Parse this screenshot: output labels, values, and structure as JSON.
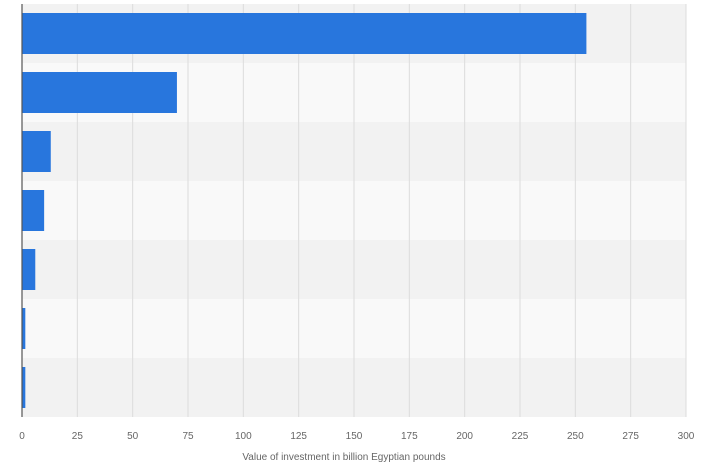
{
  "chart_data": {
    "type": "bar",
    "orientation": "horizontal",
    "categories": [
      "",
      "",
      "",
      "",
      "",
      "",
      ""
    ],
    "values": [
      255,
      70,
      13,
      10,
      6,
      1.5,
      1.5
    ],
    "xlabel": "Value of investment in billion Egyptian pounds",
    "ylabel": "",
    "xlim": [
      0,
      300
    ],
    "xticks": [
      0,
      25,
      50,
      75,
      100,
      125,
      150,
      175,
      200,
      225,
      250,
      275,
      300
    ],
    "grid": true,
    "legend": "none",
    "colors": {
      "bar": "#2876dd",
      "band_dark": "#f2f2f2",
      "band_light": "#f9f9f9",
      "grid": "#dcdcdc",
      "axis": "#555555",
      "tick_text": "#666666"
    }
  }
}
